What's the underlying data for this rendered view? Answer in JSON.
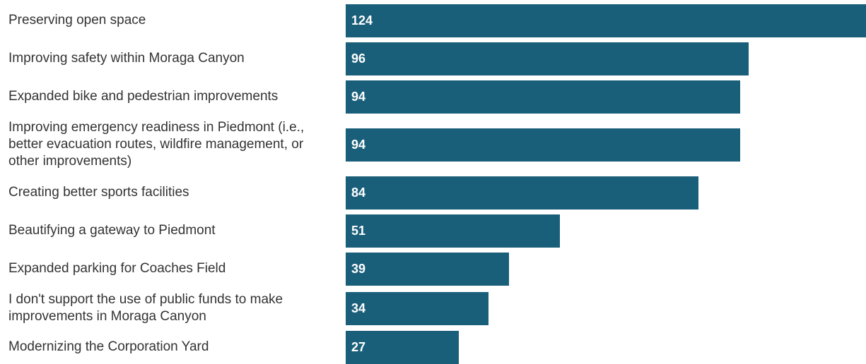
{
  "chart_data": {
    "type": "bar",
    "orientation": "horizontal",
    "categories": [
      "Preserving open space",
      "Improving safety within Moraga Canyon",
      "Expanded bike and pedestrian improvements",
      "Improving emergency readiness in Piedmont (i.e., better evacuation routes, wildfire management, or other improvements)",
      "Creating better sports facilities",
      "Beautifying a gateway to Piedmont",
      "Expanded parking for Coaches Field",
      "I don't support the use of public funds to make improvements in Moraga Canyon",
      "Modernizing the Corporation Yard"
    ],
    "values": [
      124,
      96,
      94,
      94,
      84,
      51,
      39,
      34,
      27
    ],
    "xlim": [
      0,
      124
    ],
    "grid": false,
    "bar_color": "#1a5f7a",
    "value_label_color": "#ffffff",
    "label_color": "#333333"
  }
}
